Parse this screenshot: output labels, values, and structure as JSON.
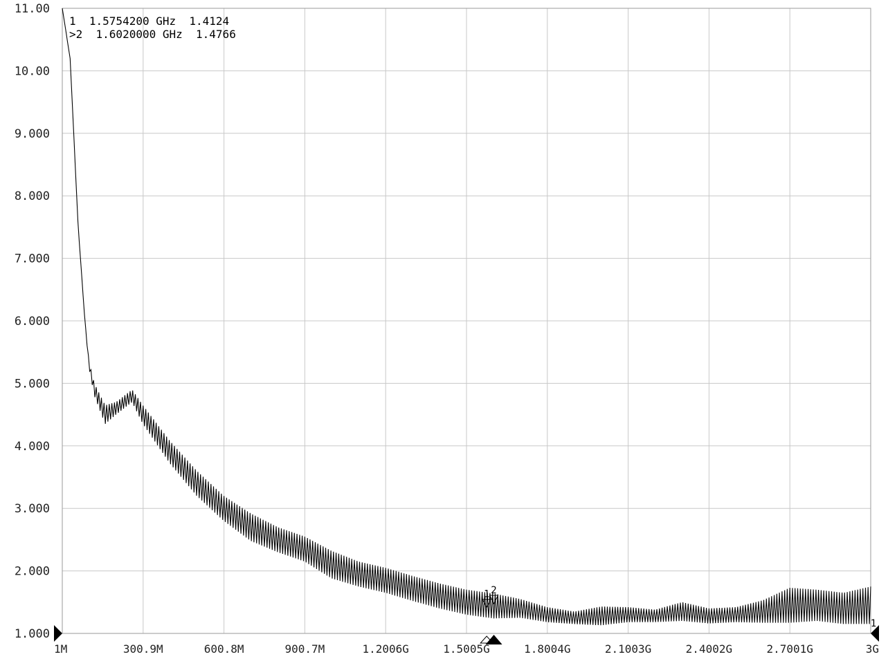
{
  "chart_data": {
    "type": "line",
    "title": "",
    "xlabel": "",
    "ylabel": "",
    "x_ticks": [
      "1M",
      "300.9M",
      "600.8M",
      "900.7M",
      "1.2006G",
      "1.5005G",
      "1.8004G",
      "2.1003G",
      "2.4002G",
      "2.7001G",
      "3G"
    ],
    "y_ticks": [
      "11.00",
      "10.00",
      "9.000",
      "8.000",
      "7.000",
      "6.000",
      "5.000",
      "4.000",
      "3.000",
      "2.000",
      "1.000"
    ],
    "xlim_ghz": [
      0.001,
      3.0
    ],
    "ylim": [
      1.0,
      11.0
    ],
    "grid": true,
    "series": [
      {
        "x_ghz": [
          0.001,
          0.03,
          0.06,
          0.085,
          0.1,
          0.12,
          0.16,
          0.2,
          0.26,
          0.3,
          0.4,
          0.5,
          0.6,
          0.7,
          0.8,
          0.9,
          1.0,
          1.1,
          1.2,
          1.3,
          1.4,
          1.5,
          1.6,
          1.7,
          1.8,
          1.9,
          2.0,
          2.1,
          2.2,
          2.3,
          2.4,
          2.5,
          2.6,
          2.7,
          2.8,
          2.9,
          3.0
        ],
        "y_center": [
          11.0,
          10.2,
          7.5,
          6.0,
          5.3,
          4.9,
          4.5,
          4.6,
          4.8,
          4.5,
          3.9,
          3.4,
          3.0,
          2.7,
          2.5,
          2.35,
          2.1,
          1.95,
          1.85,
          1.72,
          1.6,
          1.5,
          1.44,
          1.4,
          1.3,
          1.25,
          1.28,
          1.3,
          1.28,
          1.35,
          1.28,
          1.3,
          1.35,
          1.45,
          1.45,
          1.4,
          1.45
        ],
        "ripple_amplitude": [
          0,
          0,
          0,
          0,
          0.05,
          0.1,
          0.15,
          0.1,
          0.1,
          0.15,
          0.18,
          0.2,
          0.2,
          0.22,
          0.2,
          0.2,
          0.22,
          0.2,
          0.2,
          0.2,
          0.2,
          0.2,
          0.2,
          0.15,
          0.12,
          0.1,
          0.15,
          0.12,
          0.1,
          0.15,
          0.12,
          0.12,
          0.18,
          0.28,
          0.25,
          0.25,
          0.3
        ]
      }
    ],
    "markers": [
      {
        "id": "1",
        "readout": "1  1.5754200 GHz  1.4124",
        "x_ghz": 1.57542,
        "value": 1.4124
      },
      {
        "id": "2",
        "readout": ">2  1.6020000 GHz  1.4766",
        "x_ghz": 1.602,
        "value": 1.4766
      }
    ],
    "ref_marker_label": "1"
  }
}
